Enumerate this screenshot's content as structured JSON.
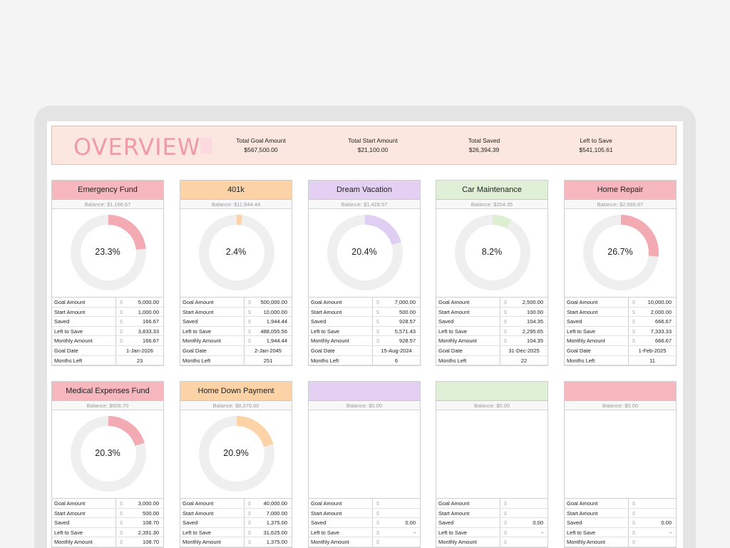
{
  "overview": {
    "title": "OVERVIEW",
    "stats": [
      {
        "label": "Total Goal Amount",
        "value": "$567,500.00"
      },
      {
        "label": "Total Start Amount",
        "value": "$21,100.00"
      },
      {
        "label": "Total Saved",
        "value": "$26,394.39"
      },
      {
        "label": "Left to Save",
        "value": "$541,105.61"
      }
    ]
  },
  "row_labels": {
    "goal_amount": "Goal Amount",
    "start_amount": "Start Amount",
    "saved": "Saved",
    "left_to_save": "Left to Save",
    "monthly_amount": "Monthly Amount",
    "goal_date": "Goal Date",
    "months_left": "Months Left",
    "currency": "$"
  },
  "funds": [
    {
      "name": "Emergency Fund",
      "balance": "Balance: $1,166.67",
      "percent_label": "23.3%",
      "progress": 0.233,
      "color": "#f4aab3",
      "head_color": "#f6b7bf",
      "goal_amount": "5,000.00",
      "start_amount": "1,000.00",
      "saved": "166.67",
      "left_to_save": "3,833.33",
      "monthly_amount": "166.67",
      "goal_date": "1-Jan-2026",
      "months_left": "23"
    },
    {
      "name": "401k",
      "balance": "Balance: $11,944.44",
      "percent_label": "2.4%",
      "progress": 0.024,
      "color": "#fbd3a6",
      "head_color": "#fbd3a6",
      "goal_amount": "500,000.00",
      "start_amount": "10,000.00",
      "saved": "1,944.44",
      "left_to_save": "488,055.56",
      "monthly_amount": "1,944.44",
      "goal_date": "2-Jan-2045",
      "months_left": "251"
    },
    {
      "name": "Dream Vacation",
      "balance": "Balance: $1,428.57",
      "percent_label": "20.4%",
      "progress": 0.204,
      "color": "#e1cff3",
      "head_color": "#e3d0f3",
      "goal_amount": "7,000.00",
      "start_amount": "500.00",
      "saved": "928.57",
      "left_to_save": "5,571.43",
      "monthly_amount": "928.57",
      "goal_date": "15-Aug-2024",
      "months_left": "6"
    },
    {
      "name": "Car Maintenance",
      "balance": "Balance: $204.35",
      "percent_label": "8.2%",
      "progress": 0.082,
      "color": "#dcefd3",
      "head_color": "#dff0d6",
      "goal_amount": "2,500.00",
      "start_amount": "100.00",
      "saved": "104.35",
      "left_to_save": "2,295.65",
      "monthly_amount": "104.35",
      "goal_date": "31-Dec-2025",
      "months_left": "22"
    },
    {
      "name": "Home Repair",
      "balance": "Balance: $2,666.67",
      "percent_label": "26.7%",
      "progress": 0.267,
      "color": "#f4aab3",
      "head_color": "#f6b7bf",
      "goal_amount": "10,000.00",
      "start_amount": "2,000.00",
      "saved": "666.67",
      "left_to_save": "7,333.33",
      "monthly_amount": "666.67",
      "goal_date": "1-Feb-2025",
      "months_left": "11"
    },
    {
      "name": "Medical Expenses Fund",
      "balance": "Balance: $608.70",
      "percent_label": "20.3%",
      "progress": 0.203,
      "color": "#f4aab3",
      "head_color": "#f6b7bf",
      "goal_amount": "3,000.00",
      "start_amount": "500.00",
      "saved": "108.70",
      "left_to_save": "2,391.30",
      "monthly_amount": "108.70"
    },
    {
      "name": "Home Down Payment",
      "balance": "Balance: $8,375.00",
      "percent_label": "20.9%",
      "progress": 0.209,
      "color": "#fbd3a6",
      "head_color": "#fbd3a6",
      "goal_amount": "40,000.00",
      "start_amount": "7,000.00",
      "saved": "1,375.00",
      "left_to_save": "31,625.00",
      "monthly_amount": "1,375.00"
    },
    {
      "name": "",
      "balance": "Balance: $0.00",
      "percent_label": "",
      "progress": 0,
      "color": "#e1cff3",
      "head_color": "#e3d0f3",
      "goal_amount": "",
      "start_amount": "",
      "saved": "0.00",
      "left_to_save": "-",
      "monthly_amount": ""
    },
    {
      "name": "",
      "balance": "Balance: $0.00",
      "percent_label": "",
      "progress": 0,
      "color": "#dcefd3",
      "head_color": "#dff0d6",
      "goal_amount": "",
      "start_amount": "",
      "saved": "0.00",
      "left_to_save": "-",
      "monthly_amount": ""
    },
    {
      "name": "",
      "balance": "Balance: $0.00",
      "percent_label": "",
      "progress": 0,
      "color": "#f4aab3",
      "head_color": "#f6b7bf",
      "goal_amount": "",
      "start_amount": "",
      "saved": "0.00",
      "left_to_save": "-",
      "monthly_amount": ""
    }
  ]
}
